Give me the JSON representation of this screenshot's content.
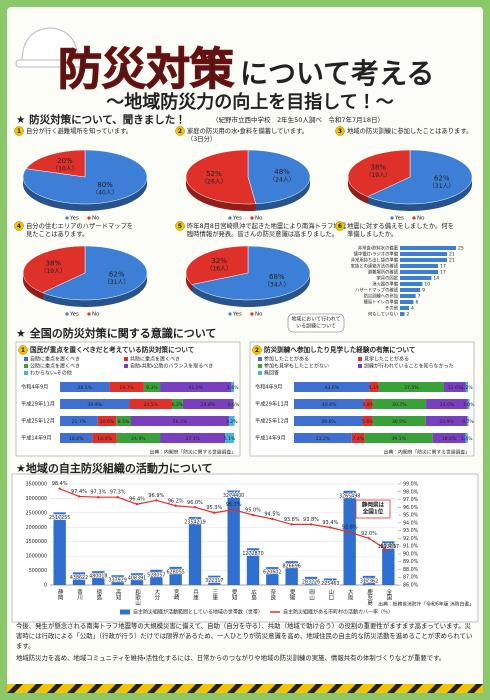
{
  "header": {
    "title_main": "防災対策",
    "title_sub": "について考える",
    "subtitle": "～地域防災力の向上を目指して！～"
  },
  "survey": {
    "heading": "★ 防災対策について、聞きました！",
    "source": "（紀野市立西中学校　2年生50人調べ　令和7年7月18日）",
    "pies": [
      {
        "type": "pie",
        "number": "1",
        "title": [
          "自分が行く避難場所を知っています。"
        ],
        "categories": [
          "Yes",
          "No"
        ],
        "colors": [
          "#3d7fd6",
          "#e0302a"
        ],
        "values": [
          80,
          20
        ],
        "value_labels": [
          "80%",
          "20%"
        ],
        "count_labels": [
          "（40人）",
          "（10人）"
        ]
      },
      {
        "type": "pie",
        "number": "2",
        "title": [
          "家庭の防災用の水・食料を備蓄しています。",
          "（3日分）"
        ],
        "categories": [
          "Yes",
          "No"
        ],
        "colors": [
          "#3d7fd6",
          "#e0302a"
        ],
        "values": [
          48,
          52
        ],
        "value_labels": [
          "48%",
          "52%"
        ],
        "count_labels": [
          "（24人）",
          "（26人）"
        ]
      },
      {
        "type": "pie",
        "number": "3",
        "title": [
          "地域の防災訓練に参加したことはあります。"
        ],
        "categories": [
          "Yes",
          "No"
        ],
        "colors": [
          "#3d7fd6",
          "#e0302a"
        ],
        "values": [
          62,
          38
        ],
        "value_labels": [
          "62%",
          "38%"
        ],
        "count_labels": [
          "（31人）",
          "（19人）"
        ]
      },
      {
        "type": "pie",
        "number": "4",
        "title": [
          "自分の住むエリアのハザードマップを",
          "見たことはあります。"
        ],
        "categories": [
          "Yes",
          "No"
        ],
        "colors": [
          "#3d7fd6",
          "#e0302a"
        ],
        "values": [
          62,
          38
        ],
        "value_labels": [
          "62%",
          "38%"
        ],
        "count_labels": [
          "（31人）",
          "（19人）"
        ]
      },
      {
        "type": "pie",
        "number": "5",
        "title": [
          "昨年8月8日宮崎県沖で起きた地震により南海トラフ地震",
          "臨時情報が発表。皆さんの防災意識は高まりました。"
        ],
        "categories": [
          "Yes",
          "No"
        ],
        "colors": [
          "#3d7fd6",
          "#e0302a"
        ],
        "values": [
          68,
          32
        ],
        "value_labels": [
          "68%",
          "32%"
        ],
        "count_labels": [
          "（34人）",
          "（16人）"
        ]
      }
    ],
    "bar": {
      "type": "bar",
      "number": "6",
      "title": [
        "地震に対する備えをしましたか。何を",
        "準備しましたか。"
      ],
      "categories": [
        "非常食・飲料水の備蓄",
        "懐中電灯・ラジオの準備",
        "非常用持ち出し袋の準備",
        "家族との連絡方法の確認",
        "避難場所の確認",
        "家具の固定",
        "消火器の準備",
        "ハザードマップの確認",
        "防災訓練への参加",
        "簡易トイレの準備",
        "その他",
        "何もしていない"
      ],
      "values": [
        25,
        21,
        21,
        17,
        17,
        14,
        10,
        9,
        7,
        6,
        4,
        2
      ],
      "color": "#3d7fd6"
    }
  },
  "national": {
    "heading": "★ 全国の防災対策に関する意識について",
    "bubble": [
      "地域において行われて",
      "いる訓練について"
    ],
    "charts": [
      {
        "type": "stacked-bar",
        "number": "1",
        "title": "国民が重点を置くべきだと考えている防災対策について",
        "categories": [
          "令和4年9月",
          "平成29年11月",
          "平成25年12月",
          "平成14年9月"
        ],
        "xlim": [
          0,
          100
        ],
        "source": "出典：内閣府「防災に関する世論調査」",
        "series": [
          {
            "name": "自助に重点を置くべき",
            "color": "#3f6fd1",
            "values": [
              28.5,
              39.9,
              21.7,
              18.6
            ],
            "value_labels": [
              "28.5%",
              "39.9%",
              "21.7%",
              "18.6%"
            ]
          },
          {
            "name": "共助に重点を置くべき",
            "color": "#e0302a",
            "values": [
              19.7,
              24.5,
              10.6,
              14.0
            ],
            "value_labels": [
              "19.7%",
              "24.5%",
              "10.6%",
              "14.0%"
            ]
          },
          {
            "name": "公助に重点を置くべき",
            "color": "#3aa13a",
            "values": [
              9.3,
              6.2,
              8.5,
              24.9
            ],
            "value_labels": [
              "9.3%",
              "6.2%",
              "8.5%",
              "24.9%"
            ]
          },
          {
            "name": "自助・共助・公助のバランスを取るべき",
            "color": "#7a3fbf",
            "values": [
              41.0,
              28.8,
              56.3,
              37.4
            ],
            "value_labels": [
              "41.0%",
              "28.8%",
              "56.3%",
              "37.4%"
            ]
          },
          {
            "name": "わからない・その他",
            "color": "#46b4e0",
            "values": [
              1.6,
              0.6,
              3.2,
              5.1
            ],
            "value_labels": [
              "1.6%",
              "0.6%",
              "3.2%",
              "5.1%"
            ]
          }
        ]
      },
      {
        "type": "stacked-bar",
        "number": "2",
        "title": "防災訓練へ参加したり見学した経験の有無について",
        "categories": [
          "令和4年9月",
          "平成29年11月",
          "平成25年12月",
          "平成14年9月"
        ],
        "xlim": [
          0,
          100
        ],
        "source": "出典：内閣府「防災に関する世論調査」",
        "series": [
          {
            "name": "参加したことがある",
            "color": "#3f6fd1",
            "values": [
              43.6,
              40.4,
              39.6,
              33.2
            ],
            "value_labels": [
              "43.6%",
              "40.4%",
              "39.6%",
              "33.2%"
            ]
          },
          {
            "name": "見学したことがある",
            "color": "#e0302a",
            "values": [
              5.1,
              4.8,
              5.6,
              7.4
            ],
            "value_labels": [
              "5.1%",
              "4.8%",
              "5.6%",
              "7.4%"
            ]
          },
          {
            "name": "参加も見学もしたことがない",
            "color": "#3aa13a",
            "values": [
              37.5,
              30.7,
              30.5,
              39.1
            ],
            "value_labels": [
              "37.5%",
              "30.7%",
              "30.5%",
              "39.1%"
            ]
          },
          {
            "name": "訓練が行われていることを知らなかった",
            "color": "#7a3fbf",
            "values": [
              12.6,
              24.0,
              23.9,
              18.8
            ],
            "value_labels": [
              "12.6%",
              "24.0%",
              "23.9%",
              "18.8%"
            ]
          },
          {
            "name": "無回答",
            "color": "#46b4e0",
            "values": [
              1.2,
              1.0,
              0.7,
              1.4
            ],
            "value_labels": [
              "1.2%",
              "1.0%",
              "0.7%",
              "1.4%"
            ]
          }
        ]
      }
    ]
  },
  "organization": {
    "heading": "★地域の自主防災組織の活動力について",
    "chart": {
      "type": "bar-line",
      "categories": [
        "静岡",
        "香川",
        "徳島",
        "高知",
        "和歌山",
        "大分",
        "宮崎",
        "兵庫",
        "三重",
        "愛知",
        "広島",
        "奈良",
        "愛媛",
        "岡山",
        "山口",
        "大阪",
        "鹿児島",
        "全国"
      ],
      "ylim": [
        0,
        3500000
      ],
      "yticks": [
        0,
        500000,
        1000000,
        1500000,
        2000000,
        2500000,
        3000000,
        3500000
      ],
      "y2lim": [
        86,
        99
      ],
      "y2ticks": [
        {
          "value": 86,
          "label": "86.0%"
        },
        {
          "value": 87,
          "label": "87.0%"
        },
        {
          "value": 88,
          "label": "88.0%"
        },
        {
          "value": 89,
          "label": "89.0%"
        },
        {
          "value": 90,
          "label": "90.0%"
        },
        {
          "value": 91,
          "label": "91.0%"
        },
        {
          "value": 92,
          "label": "92.0%"
        },
        {
          "value": 93,
          "label": "93.0%"
        },
        {
          "value": 94,
          "label": "94.0%"
        },
        {
          "value": 95,
          "label": "95.0%"
        },
        {
          "value": 96,
          "label": "96.0%"
        },
        {
          "value": 97,
          "label": "97.0%"
        },
        {
          "value": 98,
          "label": "98.0%"
        },
        {
          "value": 99,
          "label": "99.0%"
        }
      ],
      "series": [
        {
          "name": "自主防災組織が活動範囲としている地域の世帯数（世帯）",
          "color": "#2f6fd0",
          "values": [
            2517255,
            438622,
            480018,
            337929,
            408391,
            528057,
            628055,
            2354219,
            322317,
            3274400,
            1272870,
            620602,
            826696,
            283226,
            225463,
            3265498,
            317362,
            1513337
          ]
        },
        {
          "name": "自主防災組織がある市町村の活動カバー率（％）",
          "color": "#e0302a",
          "axis": "y2",
          "values": [
            98.4,
            97.4,
            97.3,
            97.3,
            96.4,
            96.9,
            96.2,
            96.0,
            95.3,
            95.7,
            95.0,
            94.5,
            93.8,
            93.8,
            93.4,
            92.8,
            92.0,
            90.4
          ],
          "value_labels": [
            "98.4%",
            "97.4%",
            "97.3%",
            "97.3%",
            "96.4%",
            "96.9%",
            "96.2%",
            "96.0%",
            "95.3%",
            "95.7%",
            "95.0%",
            "94.5%",
            "93.8%",
            "93.8%",
            "93.4%",
            "92.8%",
            "92.0%",
            "90.4%"
          ]
        }
      ],
      "callout": [
        "静岡県は",
        "全国1位"
      ],
      "source": "出典：総務省消防庁「令和6年版 消防白書」"
    }
  },
  "footer": {
    "text": [
      "今後、発生が懸念される南海トラフ地震等の大規模災害に備えて、自助（自分を守る）、共助（地域で助け合う）の役割の重要性がますます高まっています。災害時には行政による「公助」（行政が行う）だけでは限界があるため、一人ひとりが防災意識を高め、地域住民の自主的な防災活動を進めることが求められています。",
      "地域防災力を高め、地域コミュニティを維持・活性化するには、日常からのつながりや地域の防災訓練の実施、情報共有の体制づくりなどが重要です。"
    ]
  }
}
